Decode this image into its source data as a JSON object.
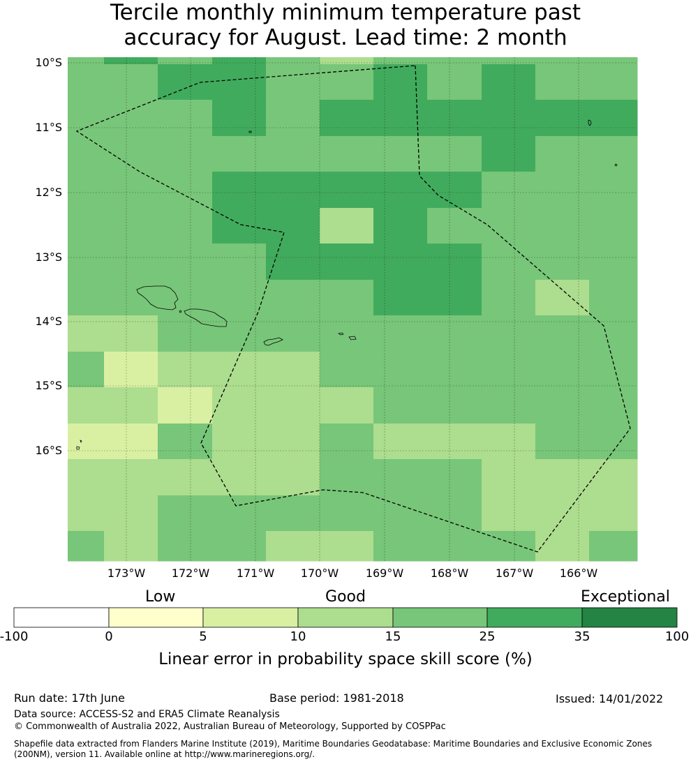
{
  "title": {
    "line1": "Tercile monthly minimum temperature past",
    "line2": "accuracy for August. Lead time: 2 month"
  },
  "map": {
    "lat_labels": [
      "10°S",
      "11°S",
      "12°S",
      "13°S",
      "14°S",
      "15°S",
      "16°S"
    ],
    "lon_labels": [
      "173°W",
      "172°W",
      "171°W",
      "170°W",
      "169°W",
      "168°W",
      "167°W",
      "166°W"
    ],
    "colors": {
      "c0": "#ffffcc",
      "c5": "#d9f0a3",
      "c10": "#addd8e",
      "c15": "#78c679",
      "c25": "#41ab5d",
      "c35": "#238443",
      "land": "#000000",
      "boundary": "#000000"
    },
    "skill_grid": [
      [
        "c15",
        "c25",
        "c15",
        "c25",
        "c15",
        "c10",
        "c15",
        "c15",
        "c15",
        "c15",
        "c15"
      ],
      [
        "c15",
        "c15",
        "c25",
        "c25",
        "c15",
        "c15",
        "c25",
        "c15",
        "c25",
        "c15",
        "c15"
      ],
      [
        "c15",
        "c15",
        "c15",
        "c25",
        "c15",
        "c25",
        "c25",
        "c25",
        "c25",
        "c25",
        "c25"
      ],
      [
        "c15",
        "c15",
        "c15",
        "c15",
        "c15",
        "c15",
        "c15",
        "c15",
        "c25",
        "c15",
        "c15"
      ],
      [
        "c15",
        "c15",
        "c15",
        "c25",
        "c25",
        "c25",
        "c25",
        "c25",
        "c15",
        "c15",
        "c15"
      ],
      [
        "c15",
        "c15",
        "c15",
        "c25",
        "c25",
        "c10",
        "c25",
        "c15",
        "c15",
        "c15",
        "c15"
      ],
      [
        "c15",
        "c15",
        "c15",
        "c15",
        "c25",
        "c25",
        "c25",
        "c25",
        "c15",
        "c15",
        "c15"
      ],
      [
        "c15",
        "c15",
        "c15",
        "c15",
        "c15",
        "c15",
        "c25",
        "c25",
        "c15",
        "c10",
        "c15"
      ],
      [
        "c10",
        "c10",
        "c15",
        "c15",
        "c15",
        "c15",
        "c15",
        "c15",
        "c15",
        "c15",
        "c15"
      ],
      [
        "c15",
        "c5",
        "c10",
        "c10",
        "c10",
        "c15",
        "c15",
        "c15",
        "c15",
        "c15",
        "c15"
      ],
      [
        "c10",
        "c10",
        "c5",
        "c10",
        "c10",
        "c10",
        "c15",
        "c15",
        "c15",
        "c15",
        "c15"
      ],
      [
        "c5",
        "c5",
        "c15",
        "c10",
        "c10",
        "c15",
        "c10",
        "c10",
        "c10",
        "c15",
        "c15"
      ],
      [
        "c10",
        "c10",
        "c10",
        "c10",
        "c10",
        "c15",
        "c15",
        "c15",
        "c10",
        "c10",
        "c10"
      ],
      [
        "c10",
        "c10",
        "c15",
        "c15",
        "c15",
        "c15",
        "c15",
        "c15",
        "c10",
        "c10",
        "c10"
      ],
      [
        "c15",
        "c10",
        "c15",
        "c15",
        "c10",
        "c10",
        "c15",
        "c15",
        "c15",
        "c10",
        "c15"
      ]
    ]
  },
  "legend": {
    "category_low": "Low",
    "category_good": "Good",
    "category_exceptional": "Exceptional",
    "ticks": [
      "-100",
      "0",
      "5",
      "10",
      "15",
      "25",
      "35",
      "100"
    ],
    "bin_colors": [
      "#ffffff",
      "#ffffcc",
      "#d9f0a3",
      "#addd8e",
      "#78c679",
      "#41ab5d",
      "#238443"
    ],
    "caption": "Linear error in probability space skill score (%)"
  },
  "footer": {
    "run_date": "Run date: 17th June",
    "base_period": "Base period: 1981-2018",
    "issued": "Issued: 14/01/2022",
    "data_source": "Data source: ACCESS-S2 and ERA5 Climate Reanalysis",
    "copyright": "© Commonwealth of Australia 2022, Australian Bureau of Meteorology, Supported by COSPPac",
    "shapefile_line1": "Shapefile data extracted from Flanders Marine Institute (2019), Maritime Boundaries Geodatabase: Maritime Boundaries and Exclusive Economic Zones",
    "shapefile_line2": "(200NM), version 11. Available online at http://www.marineregions.org/."
  }
}
